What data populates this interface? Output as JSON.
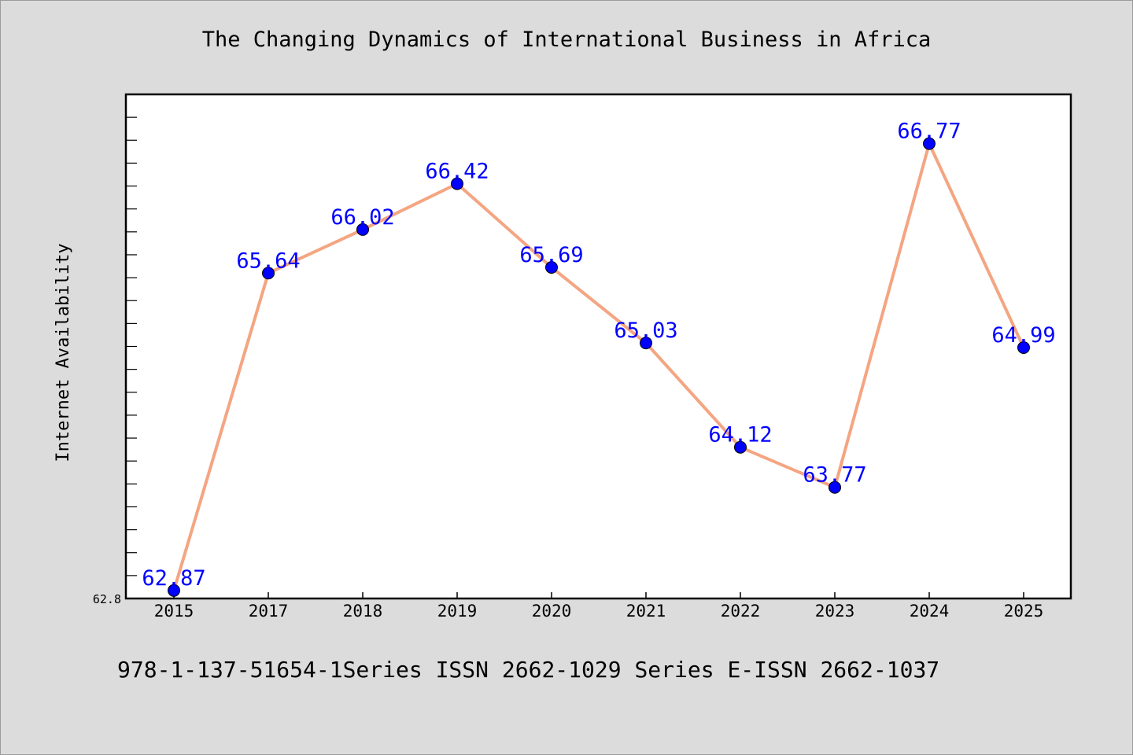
{
  "chart_data": {
    "type": "line",
    "title": "The Changing Dynamics of International Business in Africa",
    "ylabel": "Internet Availability",
    "xlabel": "",
    "categories": [
      "2015",
      "2017",
      "2018",
      "2019",
      "2020",
      "2021",
      "2022",
      "2023",
      "2024",
      "2025"
    ],
    "series": [
      {
        "values": [
          62.87,
          65.64,
          66.02,
          66.42,
          65.69,
          65.03,
          64.12,
          63.77,
          66.77,
          64.99
        ]
      }
    ],
    "data_labels": [
      "62.87",
      "65.64",
      "66.02",
      "66.42",
      "65.69",
      "65.03",
      "64.12",
      "63.77",
      "66.77",
      "64.99"
    ],
    "ylim": [
      62.8,
      67.2
    ],
    "y_tick_labels": [
      "62.8"
    ],
    "grid": false,
    "colors": {
      "line": "#f4a582",
      "marker": "#0000ff",
      "label": "#0000ff",
      "background": "#dcdcdc",
      "plot_bg": "#ffffff"
    }
  },
  "footer": {
    "text": "978-1-137-51654-1Series ISSN 2662-1029 Series E-ISSN 2662-1037"
  }
}
